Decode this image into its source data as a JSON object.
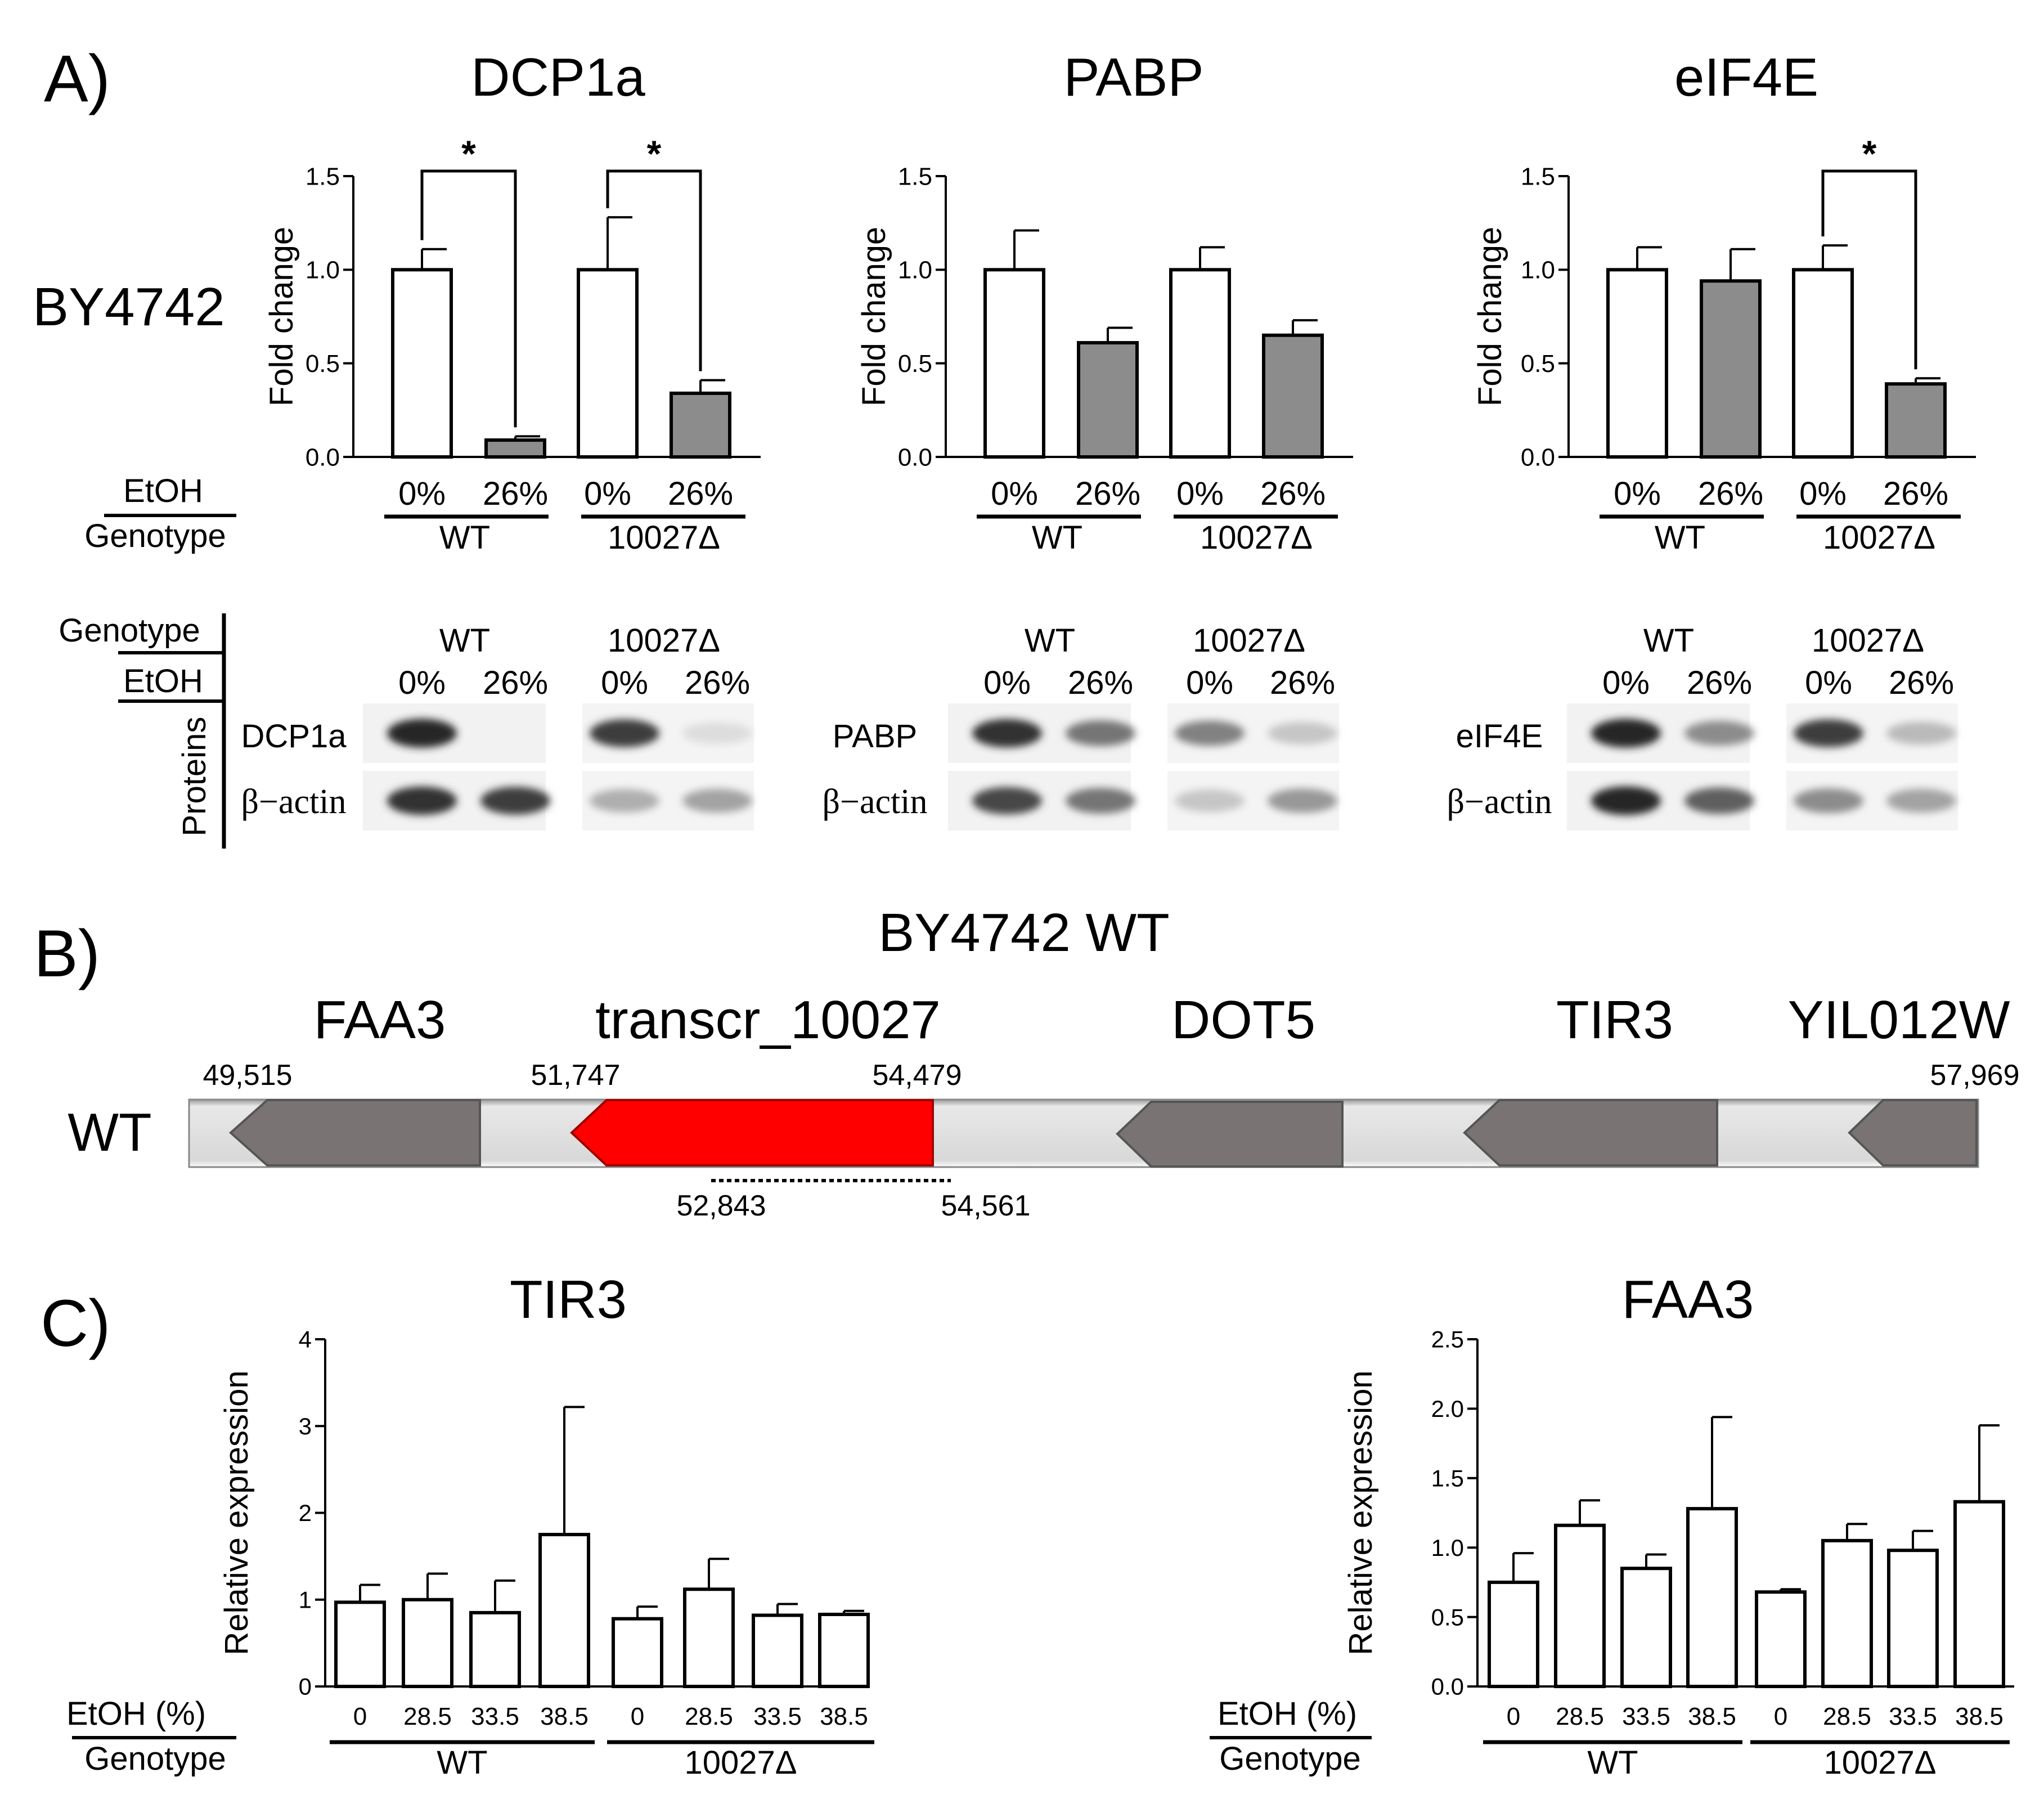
{
  "panel_labels": {
    "a": "A)",
    "b": "B)",
    "c": "C)"
  },
  "strain_label": "BY4742",
  "colors": {
    "control": "#ffffff",
    "treated": "#8c8c8c",
    "transcript": "#ff0000",
    "gene": "#7a7a7a",
    "track": "#dedede"
  },
  "panel_a": {
    "row_labels": {
      "etoh": "EtOH",
      "genotype": "Genotype"
    },
    "blot_headers": {
      "genotype": "Genotype",
      "etoh": "EtOH",
      "proteins": "Proteins"
    },
    "loading_control": "β−actin",
    "charts": [
      {
        "name": "dcp1a",
        "protein": "DCP1a",
        "blot_label": "DCP1a",
        "wt_label": "WT",
        "ko_label": "10027Δ",
        "chart_data": {
          "type": "bar",
          "title": "DCP1a",
          "ylabel": "Fold change",
          "xlabel": "",
          "ylim": [
            0,
            1.5
          ],
          "yticks": [
            "0.0",
            "0.5",
            "1.0",
            "1.5"
          ],
          "categories": [
            "0%",
            "26%",
            "0%",
            "26%"
          ],
          "groups": [
            "WT",
            "10027Δ"
          ],
          "values": [
            1.0,
            0.09,
            1.0,
            0.34
          ],
          "errors": [
            0.11,
            0.02,
            0.28,
            0.07
          ],
          "significance": [
            {
              "pair": [
                0,
                1
              ],
              "label": "*"
            },
            {
              "pair": [
                2,
                3
              ],
              "label": "*"
            }
          ]
        }
      },
      {
        "name": "pabp",
        "protein": "PABP",
        "blot_label": "PABP",
        "wt_label": "WT",
        "ko_label": "10027Δ",
        "chart_data": {
          "type": "bar",
          "title": "PABP",
          "ylabel": "Fold change",
          "xlabel": "",
          "ylim": [
            0,
            1.5
          ],
          "yticks": [
            "0.0",
            "0.5",
            "1.0",
            "1.5"
          ],
          "categories": [
            "0%",
            "26%",
            "0%",
            "26%"
          ],
          "groups": [
            "WT",
            "10027Δ"
          ],
          "values": [
            1.0,
            0.61,
            1.0,
            0.65
          ],
          "errors": [
            0.21,
            0.08,
            0.12,
            0.08
          ],
          "significance": []
        }
      },
      {
        "name": "eif4e",
        "protein": "eIF4E",
        "blot_label": "eIF4E",
        "wt_label": "WT",
        "ko_label": "10027Δ",
        "chart_data": {
          "type": "bar",
          "title": "eIF4E",
          "ylabel": "Fold change",
          "xlabel": "",
          "ylim": [
            0,
            1.5
          ],
          "yticks": [
            "0.0",
            "0.5",
            "1.0",
            "1.5"
          ],
          "categories": [
            "0%",
            "26%",
            "0%",
            "26%"
          ],
          "groups": [
            "WT",
            "10027Δ"
          ],
          "values": [
            1.0,
            0.94,
            1.0,
            0.39
          ],
          "errors": [
            0.12,
            0.17,
            0.13,
            0.03
          ],
          "significance": [
            {
              "pair": [
                2,
                3
              ],
              "label": "*"
            }
          ]
        }
      }
    ]
  },
  "panel_b": {
    "title": "BY4742 WT",
    "track_label": "WT",
    "genes": [
      {
        "name": "FAA3",
        "kind": "gene"
      },
      {
        "name": "transcr_10027",
        "kind": "transcript"
      },
      {
        "name": "DOT5",
        "kind": "gene"
      },
      {
        "name": "TIR3",
        "kind": "gene"
      },
      {
        "name": "YIL012W",
        "kind": "gene"
      }
    ],
    "coordinates": {
      "start": "49,515",
      "transcript_start": "51,747",
      "transcript_end": "54,479",
      "end": "57,969",
      "deletion_start": "52,843",
      "deletion_end": "54,561"
    }
  },
  "panel_c": {
    "row_labels": {
      "etoh": "EtOH (%)",
      "genotype": "Genotype"
    },
    "charts": [
      {
        "name": "tir3",
        "wt_label": "WT",
        "ko_label": "10027Δ",
        "chart_data": {
          "type": "bar",
          "title": "TIR3",
          "ylabel": "Relative expression",
          "xlabel": "",
          "ylim": [
            0,
            4
          ],
          "yticks": [
            "0",
            "1",
            "2",
            "3",
            "4"
          ],
          "categories": [
            "0",
            "28.5",
            "33.5",
            "38.5",
            "0",
            "28.5",
            "33.5",
            "38.5"
          ],
          "groups": [
            "WT",
            "10027Δ"
          ],
          "values": [
            0.97,
            1.0,
            0.85,
            1.75,
            0.78,
            1.12,
            0.82,
            0.83
          ],
          "errors": [
            0.2,
            0.3,
            0.37,
            1.47,
            0.14,
            0.35,
            0.13,
            0.04
          ]
        }
      },
      {
        "name": "faa3",
        "wt_label": "WT",
        "ko_label": "10027Δ",
        "chart_data": {
          "type": "bar",
          "title": "FAA3",
          "ylabel": "Relative expression",
          "xlabel": "",
          "ylim": [
            0,
            2.5
          ],
          "yticks": [
            "0.0",
            "0.5",
            "1.0",
            "1.5",
            "2.0",
            "2.5"
          ],
          "categories": [
            "0",
            "28.5",
            "33.5",
            "38.5",
            "0",
            "28.5",
            "33.5",
            "38.5"
          ],
          "groups": [
            "WT",
            "10027Δ"
          ],
          "values": [
            0.75,
            1.16,
            0.85,
            1.28,
            0.68,
            1.05,
            0.98,
            1.33
          ],
          "errors": [
            0.21,
            0.18,
            0.1,
            0.66,
            0.02,
            0.12,
            0.14,
            0.55
          ]
        }
      }
    ]
  }
}
